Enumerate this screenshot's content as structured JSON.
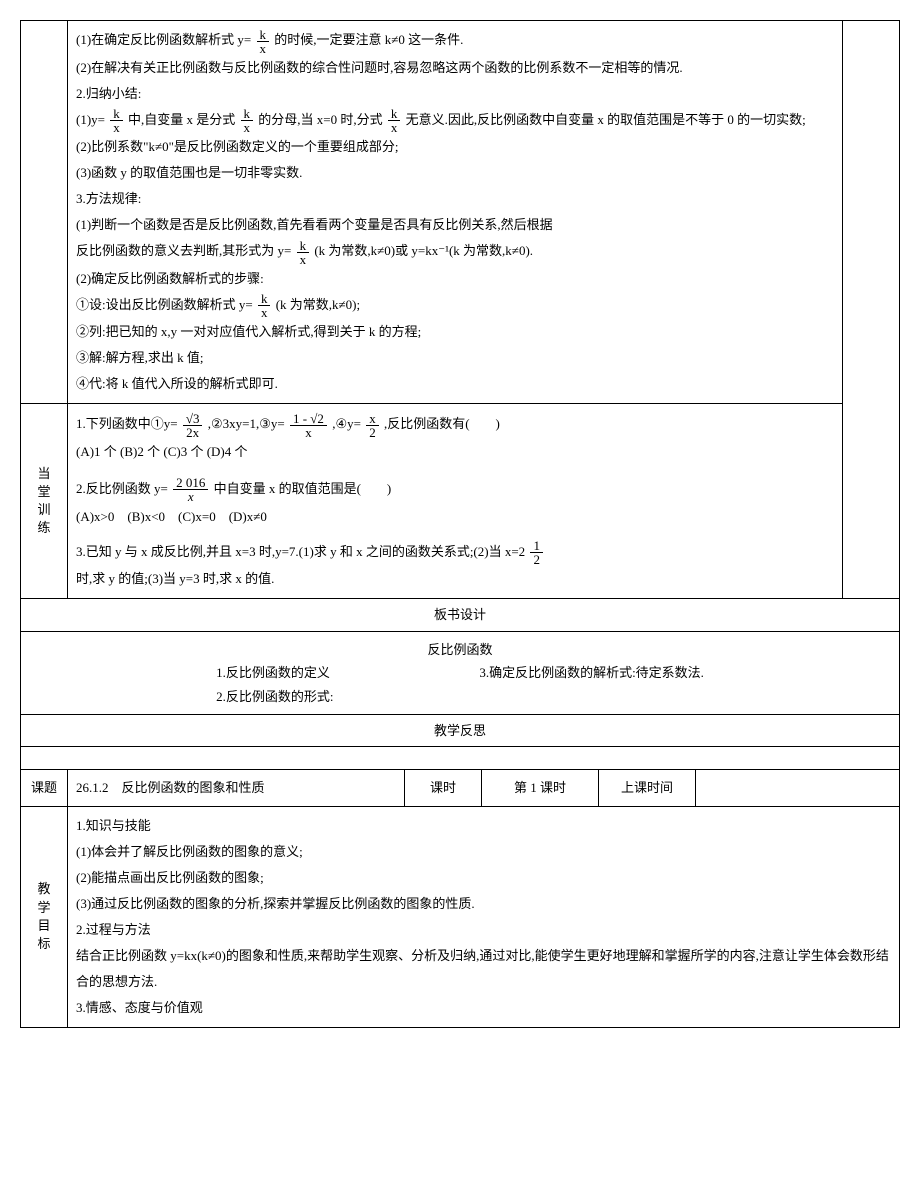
{
  "block1": {
    "line1_a": "(1)在确定反比例函数解析式 y=",
    "frac1": {
      "num": "k",
      "den": "x"
    },
    "line1_b": "的时候,一定要注意 k≠0 这一条件.",
    "line2": "(2)在解决有关正比例函数与反比例函数的综合性问题时,容易忽略这两个函数的比例系数不一定相等的情况.",
    "line3": "2.归纳小结:",
    "line4_a": "(1)y=",
    "frac2": {
      "num": "k",
      "den": "x"
    },
    "line4_b": "中,自变量 x 是分式",
    "frac3": {
      "num": "k",
      "den": "x"
    },
    "line4_c": "的分母,当 x=0 时,分式",
    "frac4": {
      "num": "k",
      "den": "x"
    },
    "line4_d": "无意义.因此,反比例函数中自变量 x 的取值范围是不等于 0 的一切实数;",
    "line5": "(2)比例系数\"k≠0\"是反比例函数定义的一个重要组成部分;",
    "line6": "(3)函数 y 的取值范围也是一切非零实数.",
    "line7": "3.方法规律:",
    "line8": "(1)判断一个函数是否是反比例函数,首先看看两个变量是否具有反比例关系,然后根据",
    "line9_a": "反比例函数的意义去判断,其形式为 y=",
    "frac5": {
      "num": "k",
      "den": "x"
    },
    "line9_b": "(k 为常数,k≠0)或 y=kx⁻¹(k 为常数,k≠0).",
    "line10": "(2)确定反比例函数解析式的步骤:",
    "line11_a": "①设:设出反比例函数解析式 y=",
    "frac6": {
      "num": "k",
      "den": "x"
    },
    "line11_b": "(k 为常数,k≠0);",
    "line12": "②列:把已知的 x,y 一对对应值代入解析式,得到关于 k 的方程;",
    "line13": "③解:解方程,求出 k 值;",
    "line14": "④代:将 k 值代入所设的解析式即可."
  },
  "block2": {
    "side": "当堂训练",
    "q1_a": "1.下列函数中①y=",
    "q1_f1": {
      "num": "√3",
      "den": "2x"
    },
    "q1_b": ",②3xy=1,③y=",
    "q1_f2": {
      "num": "1 - √2",
      "den": "x"
    },
    "q1_c": ",④y=",
    "q1_f3": {
      "num": "x",
      "den": "2"
    },
    "q1_d": ",反比例函数有(　　)",
    "q1_opts": "(A)1 个 (B)2 个 (C)3 个 (D)4 个",
    "q2_a": "2.反比例函数 y=",
    "q2_f1": {
      "num": "2 016",
      "den": "x"
    },
    "q2_b": " 中自变量 x 的取值范围是(　　)",
    "q2_opts": "(A)x>0　(B)x<0　(C)x=0　(D)x≠0",
    "q3_a": "3.已知 y 与 x 成反比例,并且 x=3 时,y=7.(1)求 y 和 x 之间的函数关系式;(2)当 x=2",
    "q3_f1": {
      "num": "1",
      "den": "2"
    },
    "q3_b": "时,求 y 的值;(3)当 y=3 时,求 x 的值."
  },
  "board": {
    "title": "板书设计",
    "sub": "反比例函数",
    "l1": "1.反比例函数的定义",
    "l2": "2.反比例函数的形式:",
    "l3": "3.确定反比例函数的解析式:待定系数法."
  },
  "reflect": "教学反思",
  "lesson": {
    "topic_label": "课题",
    "topic": "26.1.2　反比例函数的图象和性质",
    "period_label": "课时",
    "period": "第 1 课时",
    "time_label": "上课时间",
    "time": ""
  },
  "goals": {
    "side": "教学目标",
    "l1": "1.知识与技能",
    "l2": "(1)体会并了解反比例函数的图象的意义;",
    "l3": "(2)能描点画出反比例函数的图象;",
    "l4": "(3)通过反比例函数的图象的分析,探索并掌握反比例函数的图象的性质.",
    "l5": "2.过程与方法",
    "l6": "结合正比例函数 y=kx(k≠0)的图象和性质,来帮助学生观察、分析及归纳,通过对比,能使学生更好地理解和掌握所学的内容,注意让学生体会数形结合的思想方法.",
    "l7": "3.情感、态度与价值观"
  }
}
